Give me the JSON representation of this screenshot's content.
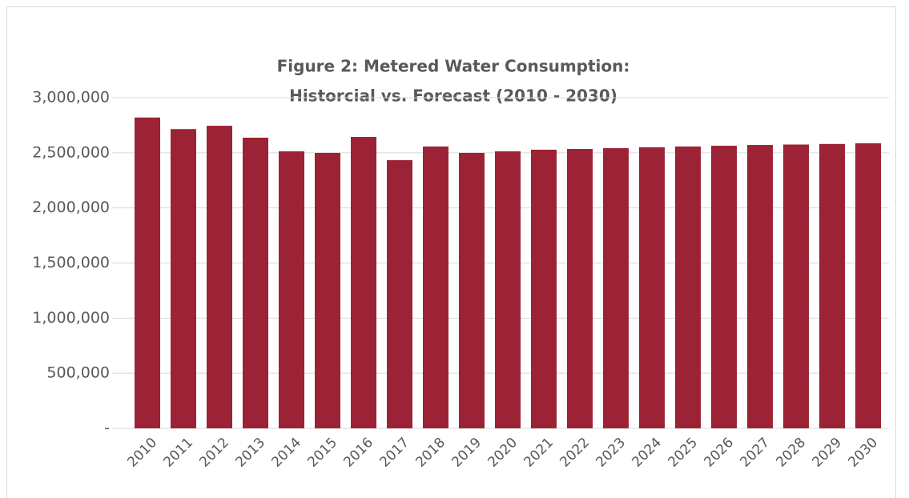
{
  "chart_data": {
    "type": "bar",
    "title": [
      "Figure 2: Metered Water Consumption:",
      "Historcial vs. Forecast (2010 - 2030)"
    ],
    "categories": [
      "2010",
      "2011",
      "2012",
      "2013",
      "2014",
      "2015",
      "2016",
      "2017",
      "2018",
      "2019",
      "2020",
      "2021",
      "2022",
      "2023",
      "2024",
      "2025",
      "2026",
      "2027",
      "2028",
      "2029",
      "2030"
    ],
    "values": [
      2820000,
      2715000,
      2745000,
      2637000,
      2513000,
      2499000,
      2644000,
      2433000,
      2557000,
      2499000,
      2513000,
      2528000,
      2535000,
      2542000,
      2550000,
      2557000,
      2564000,
      2571000,
      2575000,
      2580000,
      2586000
    ],
    "color": "#9b2335",
    "ylim": [
      0,
      3000000
    ],
    "yticks": [
      {
        "value": 0,
        "label": "-"
      },
      {
        "value": 500000,
        "label": "500,000"
      },
      {
        "value": 1000000,
        "label": "1,000,000"
      },
      {
        "value": 1500000,
        "label": "1,500,000"
      },
      {
        "value": 2000000,
        "label": "2,000,000"
      },
      {
        "value": 2500000,
        "label": "2,500,000"
      },
      {
        "value": 3000000,
        "label": "3,000,000"
      }
    ],
    "grid": true
  }
}
